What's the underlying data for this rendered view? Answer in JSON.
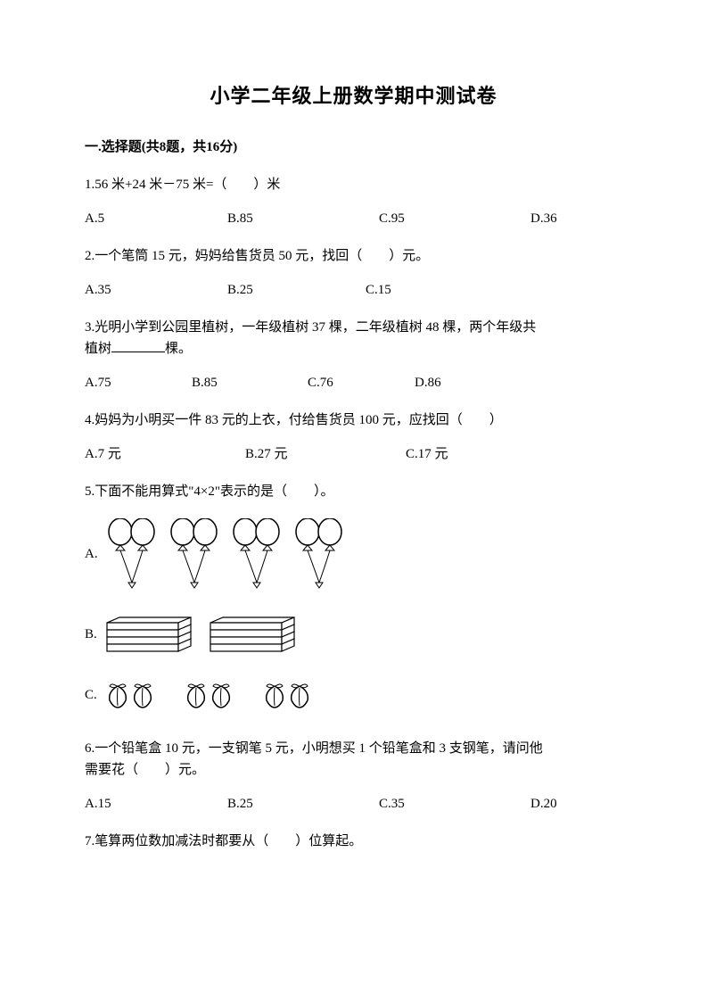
{
  "title": "小学二年级上册数学期中测试卷",
  "section1": "一.选择题(共8题，共16分)",
  "q1": {
    "text": "1.56 米+24 米－75 米=（　　）米",
    "a": "A.5",
    "b": "B.85",
    "c": "C.95",
    "d": "D.36"
  },
  "q2": {
    "text": "2.一个笔筒 15 元，妈妈给售货员 50 元，找回（　　）元。",
    "a": "A.35",
    "b": "B.25",
    "c": "C.15"
  },
  "q3": {
    "text1": "3.光明小学到公园里植树，一年级植树 37 棵，二年级植树 48 棵，两个年级共",
    "text2": "植树",
    "text3": "棵。",
    "a": "A.75",
    "b": "B.85",
    "c": "C.76",
    "d": "D.86"
  },
  "q4": {
    "text": "4.妈妈为小明买一件 83 元的上衣，付给售货员 100 元，应找回（　　）",
    "a": "A.7 元",
    "b": "B.27 元",
    "c": "C.17 元"
  },
  "q5": {
    "text": "5.下面不能用算式\"4×2\"表示的是（　　）。",
    "labelA": "A.",
    "labelB": "B.",
    "labelC": "C.",
    "balloon_pairs": 4,
    "book_stacks": 2,
    "book_layers": 4,
    "peach_groups": 3,
    "peach_per_group": 2
  },
  "q6": {
    "text1": "6.一个铅笔盒 10 元，一支钢笔 5 元，小明想买 1 个铅笔盒和 3 支钢笔，请问他",
    "text2": "需要花（　　）元。",
    "a": "A.15",
    "b": "B.25",
    "c": "C.35",
    "d": "D.20"
  },
  "q7": {
    "text": "7.笔算两位数加减法时都要从（　　）位算起。"
  },
  "colors": {
    "text": "#000000",
    "background": "#ffffff",
    "stroke": "#000000",
    "fill_white": "#ffffff"
  },
  "svg": {
    "balloon_stroke_width": 1.5,
    "book_stroke_width": 1.2,
    "peach_stroke_width": 1.5
  }
}
